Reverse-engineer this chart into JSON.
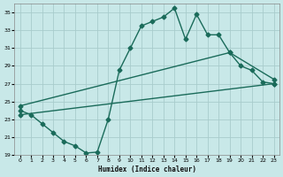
{
  "xlabel": "Humidex (Indice chaleur)",
  "bg_color": "#c8e8e8",
  "grid_color": "#a8cccc",
  "line_color": "#1a6b5a",
  "xlim": [
    -0.5,
    23.5
  ],
  "ylim": [
    19,
    36
  ],
  "yticks": [
    19,
    21,
    23,
    25,
    27,
    29,
    31,
    33,
    35
  ],
  "xticks": [
    0,
    1,
    2,
    3,
    4,
    5,
    6,
    7,
    8,
    9,
    10,
    11,
    12,
    13,
    14,
    15,
    16,
    17,
    18,
    19,
    20,
    21,
    22,
    23
  ],
  "line1_x": [
    0,
    1,
    2,
    3,
    4,
    5,
    6,
    7,
    8,
    9,
    10,
    11,
    12,
    13,
    14,
    15,
    16,
    17,
    18,
    19,
    20,
    21,
    22,
    23
  ],
  "line1_y": [
    24.0,
    23.5,
    22.5,
    21.5,
    20.5,
    20.0,
    19.2,
    19.3,
    23.0,
    28.5,
    31.0,
    33.5,
    34.0,
    34.5,
    35.5,
    32.0,
    34.8,
    32.5,
    32.5,
    30.5,
    29.0,
    28.5,
    27.2,
    27.0
  ],
  "line2_x": [
    0,
    23
  ],
  "line2_y": [
    23.5,
    27.0
  ],
  "line3_x": [
    0,
    19,
    23
  ],
  "line3_y": [
    24.5,
    30.5,
    27.5
  ],
  "marker": "D",
  "markersize": 2.5,
  "linewidth": 1.0
}
